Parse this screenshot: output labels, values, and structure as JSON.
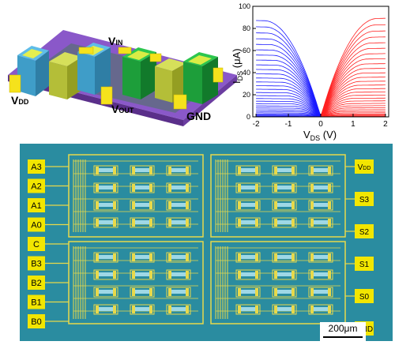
{
  "device": {
    "labels": {
      "vdd": "V",
      "vdd_sub": "DD",
      "vin": "V",
      "vin_sub": "IN",
      "vout": "V",
      "vout_sub": "OUT",
      "gnd": "GND"
    }
  },
  "chart_data": {
    "type": "line",
    "xlabel": "V",
    "xlabel_sub": "DS",
    "xlabel_unit": " (V)",
    "ylabel": "I",
    "ylabel_sub": "DS",
    "ylabel_unit": " (μA)",
    "xlim": [
      -2.1,
      2.1
    ],
    "ylim": [
      0,
      100
    ],
    "xticks": [
      -2,
      -1,
      0,
      1,
      2
    ],
    "xtick_labels": [
      "-2",
      "-1",
      "0",
      "1",
      "2"
    ],
    "yticks": [
      0,
      20,
      40,
      60,
      80,
      100
    ],
    "ytick_labels": [
      "0",
      "20",
      "40",
      "60",
      "80",
      "100"
    ],
    "series": [
      {
        "color": "#1a1aff",
        "x_range": [
          -2,
          0
        ],
        "curve_count": 30,
        "max_current": 87
      },
      {
        "color": "#ff2020",
        "x_range": [
          0,
          2
        ],
        "curve_count": 30,
        "max_current": 89
      }
    ]
  },
  "micrograph": {
    "background": "#2a8ca0",
    "pad_color": "#f2e600",
    "trace_color": "#e8d94a",
    "left_pads": [
      "A3",
      "A2",
      "A1",
      "A0",
      "C",
      "B3",
      "B2",
      "B1",
      "B0"
    ],
    "right_pads": [
      {
        "text": "V",
        "sub": "DD"
      },
      {
        "text": "S3",
        "sub": ""
      },
      {
        "text": "S2",
        "sub": ""
      },
      {
        "text": "S1",
        "sub": ""
      },
      {
        "text": "S0",
        "sub": ""
      },
      {
        "text": "GND",
        "sub": ""
      }
    ],
    "scale_bar": "200μm"
  }
}
